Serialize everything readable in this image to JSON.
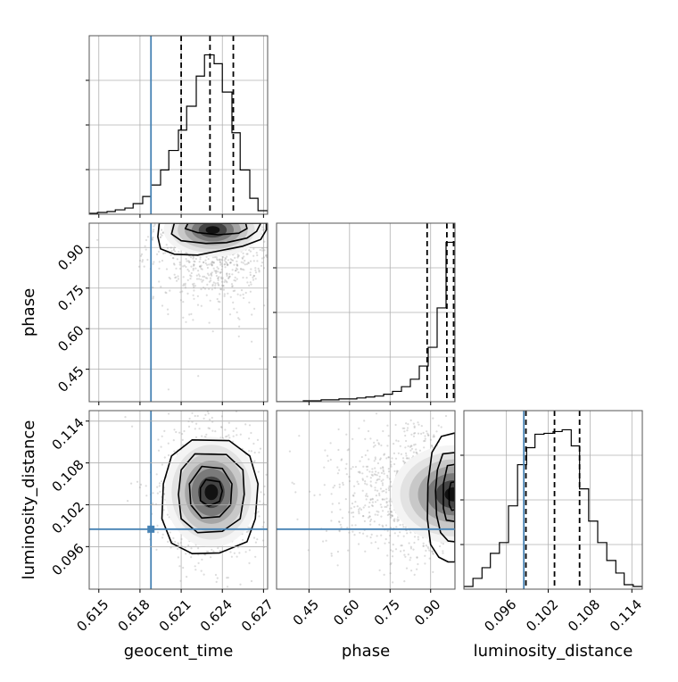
{
  "chart_data": {
    "type": "corner",
    "parameters": [
      "geocent_time",
      "phase",
      "luminosity_distance"
    ],
    "truth_color": "#4682b4",
    "contour_color": "#000000",
    "truths": {
      "geocent_time": 0.6188,
      "luminosity_distance": 0.0985
    },
    "grid": true,
    "axes": {
      "geocent_time": {
        "range": [
          0.6143,
          0.6273
        ],
        "ticks": [
          0.615,
          0.618,
          0.621,
          0.624,
          0.627
        ],
        "tick_labels": [
          "0.615",
          "0.618",
          "0.621",
          "0.624",
          "0.627"
        ]
      },
      "phase": {
        "range": [
          0.33,
          0.99
        ],
        "ticks": [
          0.45,
          0.6,
          0.75,
          0.9
        ],
        "tick_labels": [
          "0.45",
          "0.60",
          "0.75",
          "0.90"
        ]
      },
      "luminosity_distance": {
        "range": [
          0.0899,
          0.1155
        ],
        "ticks": [
          0.096,
          0.102,
          0.108,
          0.114
        ],
        "tick_labels": [
          "0.096",
          "0.102",
          "0.108",
          "0.114"
        ]
      }
    },
    "histograms": {
      "geocent_time": {
        "edges": [
          0.6143,
          0.6149,
          0.6156,
          0.6162,
          0.6169,
          0.6175,
          0.6182,
          0.6188,
          0.6195,
          0.6201,
          0.6208,
          0.6214,
          0.6221,
          0.6227,
          0.6234,
          0.624,
          0.6247,
          0.6253,
          0.626,
          0.6266,
          0.6273
        ],
        "counts": [
          1,
          2,
          3,
          5,
          7,
          12,
          20,
          33,
          50,
          72,
          95,
          122,
          156,
          180,
          170,
          138,
          92,
          50,
          18,
          4
        ],
        "quantiles": [
          0.621,
          0.6231,
          0.6248
        ]
      },
      "phase": {
        "edges": [
          0.33,
          0.363,
          0.396,
          0.429,
          0.462,
          0.495,
          0.528,
          0.561,
          0.594,
          0.627,
          0.66,
          0.693,
          0.726,
          0.759,
          0.792,
          0.825,
          0.858,
          0.891,
          0.924,
          0.957,
          0.99
        ],
        "counts": [
          0,
          0,
          0,
          1,
          1,
          2,
          2,
          3,
          3,
          4,
          5,
          6,
          8,
          11,
          16,
          24,
          38,
          58,
          100,
          170
        ],
        "quantiles": [
          0.887,
          0.96,
          0.985
        ]
      },
      "luminosity_distance": {
        "edges": [
          0.0899,
          0.0912,
          0.0925,
          0.0937,
          0.095,
          0.0963,
          0.0976,
          0.0989,
          0.1001,
          0.1014,
          0.1027,
          0.104,
          0.1053,
          0.1065,
          0.1078,
          0.1091,
          0.1104,
          0.1117,
          0.1129,
          0.1142,
          0.1155
        ],
        "counts": [
          3,
          12,
          24,
          40,
          52,
          93,
          139,
          158,
          173,
          174,
          176,
          178,
          160,
          112,
          76,
          52,
          32,
          18,
          5,
          3
        ],
        "quantiles": [
          0.0988,
          0.1029,
          0.1065
        ]
      }
    },
    "joint": {
      "geocent_time__phase": {
        "center": [
          0.6233,
          0.965
        ],
        "contours": [
          [
            [
              0.6215,
              0.99
            ],
            [
              0.6213,
              0.97
            ],
            [
              0.6222,
              0.955
            ],
            [
              0.6237,
              0.947
            ],
            [
              0.6252,
              0.953
            ],
            [
              0.6258,
              0.97
            ],
            [
              0.6257,
              0.99
            ]
          ],
          [
            [
              0.6205,
              0.99
            ],
            [
              0.6203,
              0.95
            ],
            [
              0.621,
              0.925
            ],
            [
              0.6228,
              0.915
            ],
            [
              0.6243,
              0.918
            ],
            [
              0.6258,
              0.935
            ],
            [
              0.6265,
              0.96
            ],
            [
              0.6268,
              0.99
            ]
          ],
          [
            [
              0.6194,
              0.99
            ],
            [
              0.6193,
              0.94
            ],
            [
              0.6195,
              0.895
            ],
            [
              0.6205,
              0.875
            ],
            [
              0.6222,
              0.872
            ],
            [
              0.6238,
              0.888
            ],
            [
              0.6255,
              0.905
            ],
            [
              0.6268,
              0.93
            ],
            [
              0.6272,
              0.965
            ],
            [
              0.6272,
              0.99
            ]
          ]
        ]
      },
      "geocent_time__luminosity_distance": {
        "center": [
          0.6232,
          0.1038
        ],
        "contours": [
          [
            [
              0.6228,
              0.1056
            ],
            [
              0.6238,
              0.1053
            ],
            [
              0.624,
              0.104
            ],
            [
              0.6238,
              0.1025
            ],
            [
              0.623,
              0.1018
            ],
            [
              0.6224,
              0.1026
            ],
            [
              0.6224,
              0.1044
            ]
          ],
          [
            [
              0.6225,
              0.1075
            ],
            [
              0.624,
              0.1072
            ],
            [
              0.6247,
              0.105
            ],
            [
              0.6246,
              0.102
            ],
            [
              0.6238,
              0.1003
            ],
            [
              0.6225,
              0.1001
            ],
            [
              0.6217,
              0.102
            ],
            [
              0.6216,
              0.105
            ]
          ],
          [
            [
              0.622,
              0.1093
            ],
            [
              0.6243,
              0.1092
            ],
            [
              0.6255,
              0.107
            ],
            [
              0.6256,
              0.1035
            ],
            [
              0.6253,
              0.1
            ],
            [
              0.624,
              0.0982
            ],
            [
              0.6222,
              0.098
            ],
            [
              0.621,
              0.1
            ],
            [
              0.6208,
              0.1035
            ],
            [
              0.621,
              0.107
            ]
          ],
          [
            [
              0.6218,
              0.1113
            ],
            [
              0.6245,
              0.1112
            ],
            [
              0.626,
              0.109
            ],
            [
              0.6266,
              0.105
            ],
            [
              0.6264,
              0.1
            ],
            [
              0.6258,
              0.0967
            ],
            [
              0.6238,
              0.0951
            ],
            [
              0.6218,
              0.095
            ],
            [
              0.6203,
              0.0965
            ],
            [
              0.6196,
              0.1
            ],
            [
              0.6197,
              0.105
            ],
            [
              0.6203,
              0.109
            ]
          ]
        ]
      },
      "phase__luminosity_distance": {
        "center": [
          0.985,
          0.1035
        ],
        "contours": [
          [
            [
              0.99,
              0.1053
            ],
            [
              0.975,
              0.1052
            ],
            [
              0.968,
              0.104
            ],
            [
              0.969,
              0.102
            ],
            [
              0.978,
              0.1012
            ],
            [
              0.99,
              0.1013
            ]
          ],
          [
            [
              0.99,
              0.1078
            ],
            [
              0.962,
              0.1076
            ],
            [
              0.947,
              0.105
            ],
            [
              0.947,
              0.1015
            ],
            [
              0.958,
              0.0998
            ],
            [
              0.99,
              0.0996
            ]
          ],
          [
            [
              0.99,
              0.1095
            ],
            [
              0.945,
              0.1093
            ],
            [
              0.925,
              0.107
            ],
            [
              0.918,
              0.104
            ],
            [
              0.922,
              0.1005
            ],
            [
              0.937,
              0.098
            ],
            [
              0.965,
              0.0968
            ],
            [
              0.99,
              0.0967
            ]
          ],
          [
            [
              0.99,
              0.1123
            ],
            [
              0.94,
              0.1118
            ],
            [
              0.905,
              0.1095
            ],
            [
              0.89,
              0.105
            ],
            [
              0.888,
              0.1
            ],
            [
              0.9,
              0.0963
            ],
            [
              0.93,
              0.0945
            ],
            [
              0.965,
              0.0938
            ],
            [
              0.99,
              0.0938
            ]
          ]
        ]
      }
    }
  }
}
